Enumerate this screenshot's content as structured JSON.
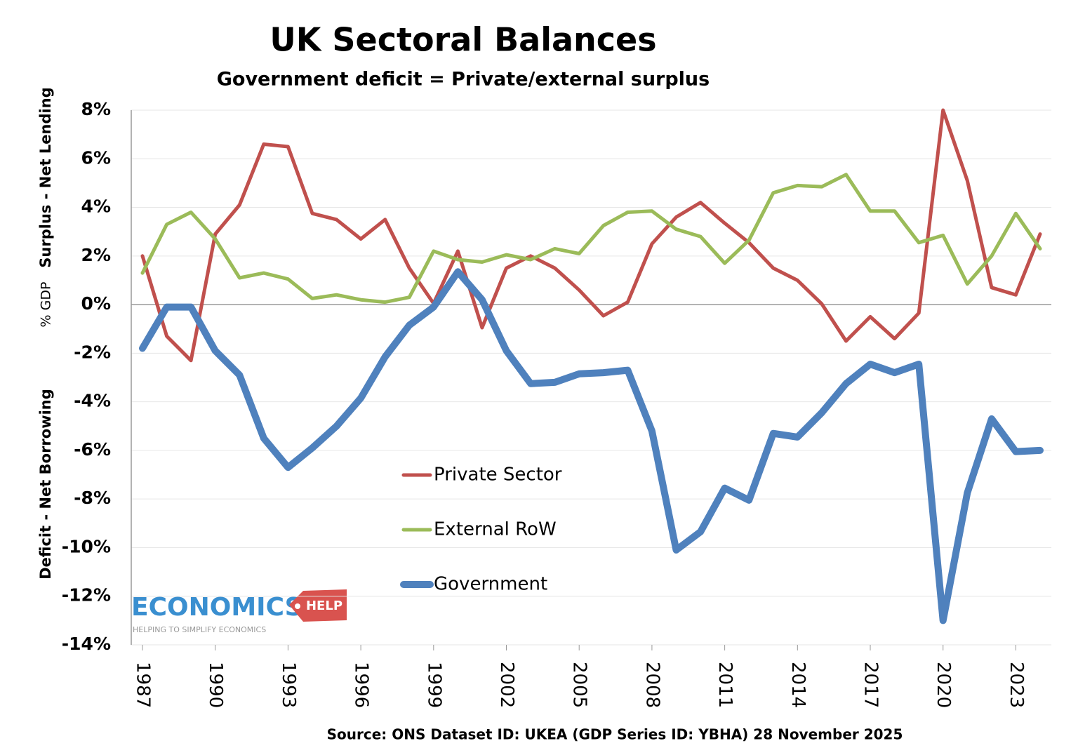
{
  "chart_data": {
    "type": "line",
    "title": "UK Sectoral Balances",
    "subtitle": "Government deficit = Private/external surplus",
    "y_label_top": "Surplus - Net Lending",
    "y_label_mid": "% GDP",
    "y_label_bottom": "Deficit - Net Borrowing",
    "source": "Source:  ONS Dataset ID: UKEA (GDP Series ID: YBHA) 28 November 2025",
    "logo": {
      "name": "ECONOMICS",
      "badge": "HELP",
      "tagline": "HELPING TO SIMPLIFY ECONOMICS"
    },
    "x": [
      1987,
      1988,
      1989,
      1990,
      1991,
      1992,
      1993,
      1994,
      1995,
      1996,
      1997,
      1998,
      1999,
      2000,
      2001,
      2002,
      2003,
      2004,
      2005,
      2006,
      2007,
      2008,
      2009,
      2010,
      2011,
      2012,
      2013,
      2014,
      2015,
      2016,
      2017,
      2018,
      2019,
      2020,
      2021,
      2022,
      2023,
      2024
    ],
    "xlim": [
      1987,
      2024
    ],
    "xticks": [
      1987,
      1990,
      1993,
      1996,
      1999,
      2002,
      2005,
      2008,
      2011,
      2014,
      2017,
      2020,
      2023
    ],
    "ylim": [
      -14,
      8
    ],
    "yticks": [
      {
        "value": -14,
        "label": "-14%"
      },
      {
        "value": -12,
        "label": "-12%"
      },
      {
        "value": -10,
        "label": "-10%"
      },
      {
        "value": -8,
        "label": "-8%"
      },
      {
        "value": -6,
        "label": "-6%"
      },
      {
        "value": -4,
        "label": "-4%"
      },
      {
        "value": -2,
        "label": "-2%"
      },
      {
        "value": 0,
        "label": "0%"
      },
      {
        "value": 2,
        "label": "2%"
      },
      {
        "value": 4,
        "label": "4%"
      },
      {
        "value": 6,
        "label": "6%"
      },
      {
        "value": 8,
        "label": "8%"
      }
    ],
    "grid": true,
    "legend": "center",
    "series": [
      {
        "name": "Private Sector",
        "color": "#c0504d",
        "width": 5,
        "values": [
          2.0,
          -1.3,
          -2.3,
          2.9,
          4.1,
          6.6,
          6.5,
          3.75,
          3.5,
          2.7,
          3.5,
          1.5,
          0.05,
          2.2,
          -0.95,
          1.5,
          2.0,
          1.5,
          0.6,
          -0.46,
          0.1,
          2.5,
          3.6,
          4.2,
          3.35,
          2.55,
          1.5,
          1.0,
          0.03,
          -1.5,
          -0.5,
          -1.4,
          -0.35,
          8.0,
          5.1,
          0.7,
          0.4,
          2.9
        ]
      },
      {
        "name": "External RoW",
        "color": "#9bbb59",
        "width": 5,
        "values": [
          1.3,
          3.3,
          3.8,
          2.7,
          1.1,
          1.3,
          1.05,
          0.25,
          0.4,
          0.2,
          0.1,
          0.3,
          2.2,
          1.85,
          1.75,
          2.05,
          1.85,
          2.3,
          2.1,
          3.25,
          3.8,
          3.85,
          3.1,
          2.8,
          1.7,
          2.65,
          4.6,
          4.9,
          4.85,
          5.35,
          3.85,
          3.85,
          2.55,
          2.85,
          0.85,
          2.0,
          3.75,
          2.3
        ]
      },
      {
        "name": "Government",
        "color": "#4f81bd",
        "width": 10,
        "values": [
          -1.8,
          -0.1,
          -0.1,
          -1.9,
          -2.9,
          -5.5,
          -6.7,
          -5.9,
          -5.0,
          -3.85,
          -2.15,
          -0.85,
          -0.1,
          1.35,
          0.2,
          -1.9,
          -3.25,
          -3.2,
          -2.85,
          -2.8,
          -2.7,
          -5.2,
          -10.1,
          -9.35,
          -7.55,
          -8.05,
          -5.3,
          -5.45,
          -4.45,
          -3.25,
          -2.45,
          -2.8,
          -2.45,
          -13.0,
          -7.75,
          -4.7,
          -6.05,
          -6.0
        ]
      }
    ]
  }
}
